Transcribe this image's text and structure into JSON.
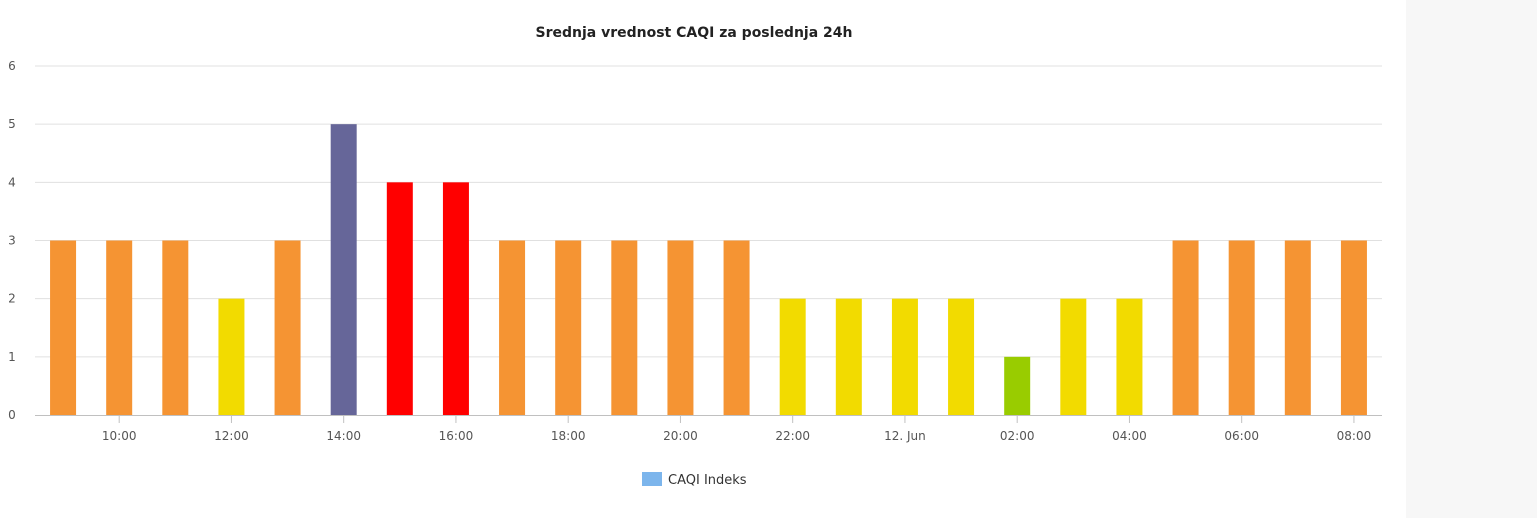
{
  "chart_data": {
    "type": "bar",
    "title": "Srednja vrednost CAQI za poslednja 24h",
    "xlabel": "",
    "ylabel": "",
    "ylim": [
      0,
      6
    ],
    "yticks": [
      "0",
      "1",
      "2",
      "3",
      "4",
      "5",
      "6"
    ],
    "grid": true,
    "legend": {
      "placement": "bottom-center",
      "label": "CAQI Indeks",
      "color": "#7cb5ec"
    },
    "categories": [
      "09:00",
      "10:00",
      "11:00",
      "12:00",
      "13:00",
      "14:00",
      "15:00",
      "16:00",
      "17:00",
      "18:00",
      "19:00",
      "20:00",
      "21:00",
      "22:00",
      "23:00",
      "00:00",
      "01:00",
      "02:00",
      "03:00",
      "04:00",
      "05:00",
      "06:00",
      "07:00",
      "08:00"
    ],
    "x_tick_labels": [
      {
        "index": 1,
        "label": "10:00"
      },
      {
        "index": 3,
        "label": "12:00"
      },
      {
        "index": 5,
        "label": "14:00"
      },
      {
        "index": 7,
        "label": "16:00"
      },
      {
        "index": 9,
        "label": "18:00"
      },
      {
        "index": 11,
        "label": "20:00"
      },
      {
        "index": 13,
        "label": "22:00"
      },
      {
        "index": 15,
        "label": "12. Jun"
      },
      {
        "index": 17,
        "label": "02:00"
      },
      {
        "index": 19,
        "label": "04:00"
      },
      {
        "index": 21,
        "label": "06:00"
      },
      {
        "index": 23,
        "label": "08:00"
      }
    ],
    "series": [
      {
        "name": "CAQI Indeks",
        "values": [
          3,
          3,
          3,
          2,
          3,
          5,
          4,
          4,
          3,
          3,
          3,
          3,
          3,
          2,
          2,
          2,
          2,
          1,
          2,
          2,
          3,
          3,
          3,
          3
        ]
      }
    ],
    "level_colors": {
      "1": "#99cc00",
      "2": "#f2db00",
      "3": "#f59433",
      "4": "#ff0000",
      "5": "#666699"
    }
  }
}
